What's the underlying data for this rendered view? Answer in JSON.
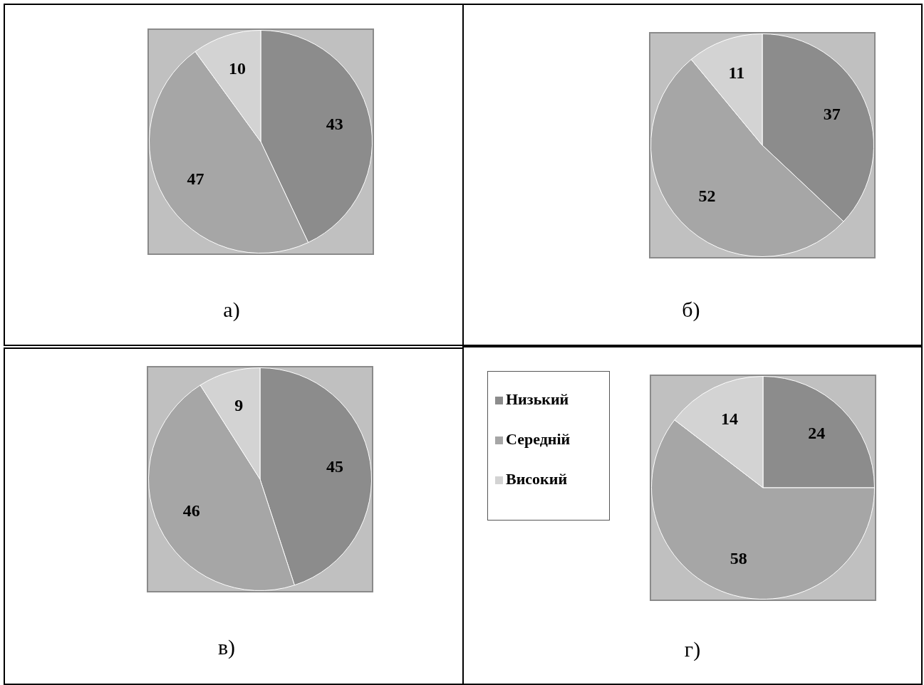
{
  "chart_data": [
    {
      "type": "pie",
      "title": "а)",
      "categories": [
        null,
        null,
        null
      ],
      "values": [
        43,
        47,
        10
      ],
      "colors": [
        "#8c8c8c",
        "#a6a6a6",
        "#d3d3d3"
      ],
      "data_labels": true,
      "legend": false
    },
    {
      "type": "pie",
      "title": "б)",
      "categories": [
        null,
        null,
        null
      ],
      "values": [
        37,
        52,
        11
      ],
      "colors": [
        "#8c8c8c",
        "#a6a6a6",
        "#d3d3d3"
      ],
      "data_labels": true,
      "legend": false
    },
    {
      "type": "pie",
      "title": "в)",
      "categories": [
        null,
        null,
        null
      ],
      "values": [
        45,
        46,
        9
      ],
      "colors": [
        "#8c8c8c",
        "#a6a6a6",
        "#d3d3d3"
      ],
      "data_labels": true,
      "legend": false
    },
    {
      "type": "pie",
      "title": "г)",
      "categories": [
        "Низький",
        "Середній",
        "Високий"
      ],
      "values": [
        24,
        58,
        14
      ],
      "colors": [
        "#8c8c8c",
        "#a6a6a6",
        "#d3d3d3"
      ],
      "data_labels": true,
      "legend": "left"
    }
  ]
}
